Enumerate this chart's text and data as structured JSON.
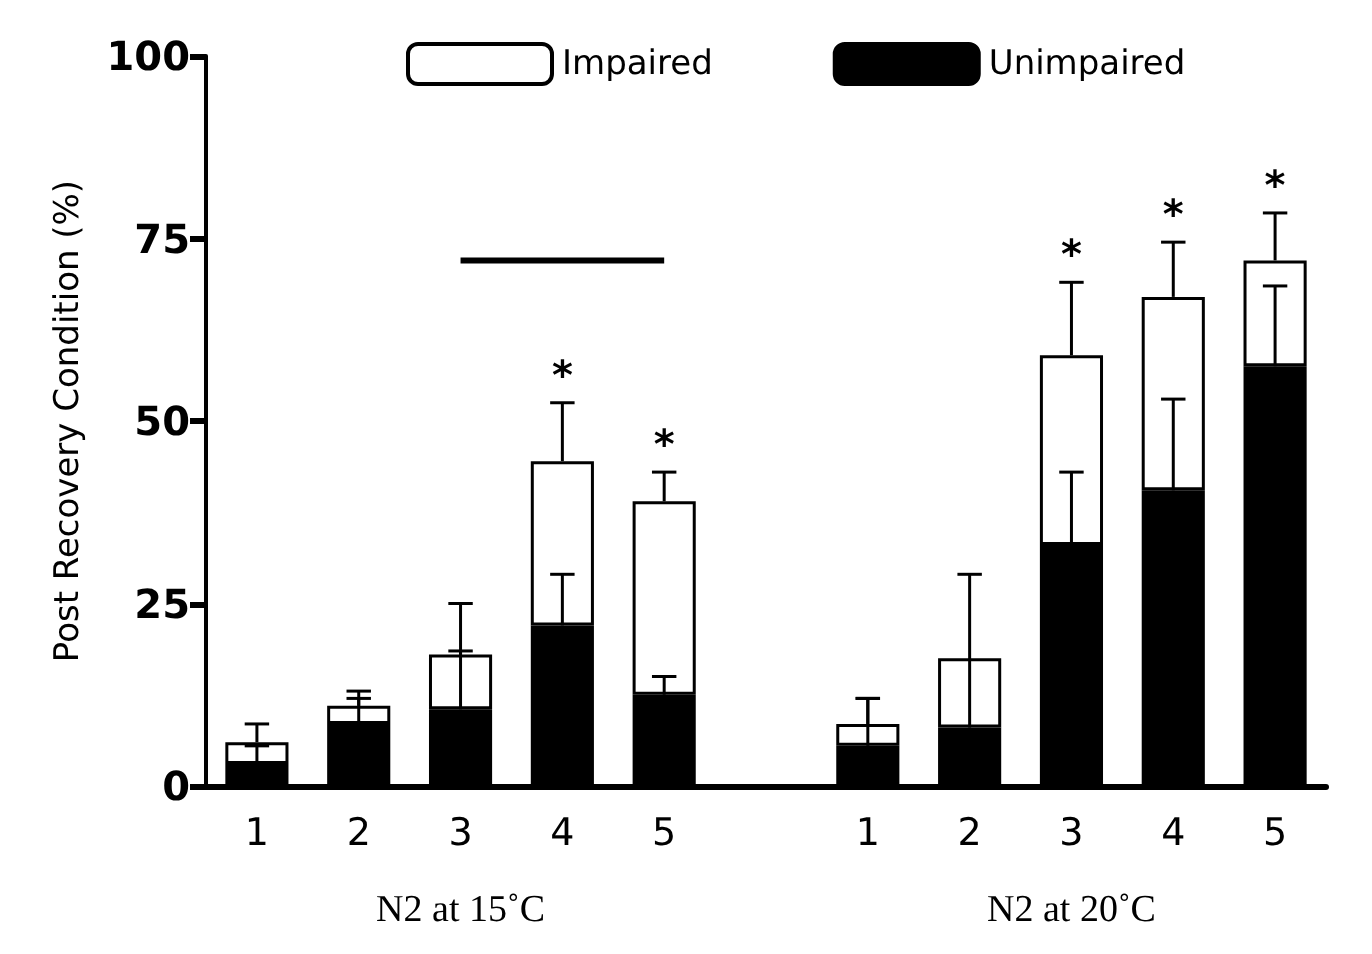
{
  "chart_data": {
    "type": "bar",
    "stacked": true,
    "ylabel": "Post Recovery Condition (%)",
    "categories": [
      "1",
      "2",
      "3",
      "4",
      "5",
      null,
      "1",
      "2",
      "3",
      "4",
      "5"
    ],
    "series": [
      {
        "name": "Unimpaired",
        "color": "#000000",
        "values": [
          3,
          8.5,
          10.5,
          22,
          12.5,
          null,
          5.5,
          8,
          33,
          40.5,
          57.5
        ],
        "errors": [
          [
            3,
            5.5
          ],
          [
            8.5,
            12
          ],
          [
            10.5,
            18.5
          ],
          [
            22,
            29
          ],
          [
            12.5,
            15
          ],
          null,
          [
            5.5,
            12
          ],
          [
            8,
            29
          ],
          [
            33,
            43
          ],
          [
            40.5,
            53
          ],
          [
            57.5,
            68.5
          ]
        ]
      },
      {
        "name": "Impaired",
        "color": "#ffffff",
        "values": [
          3,
          2.5,
          7.5,
          22.5,
          26.5,
          null,
          3,
          9.5,
          26,
          26.5,
          14.5
        ],
        "errors": [
          [
            6,
            8.5
          ],
          [
            11,
            13
          ],
          [
            18,
            25
          ],
          [
            44.5,
            52.5
          ],
          [
            39,
            43
          ],
          null,
          [
            8.5,
            12
          ],
          null,
          [
            59,
            69
          ],
          [
            67,
            74.5
          ],
          [
            72,
            78.5
          ]
        ],
        "value_labels": [
          null,
          null,
          null,
          "*",
          "*",
          null,
          null,
          null,
          "*",
          "*",
          "*"
        ]
      },
      {
        "type": "line",
        "color": "#000000",
        "values": [
          null,
          null,
          72,
          72,
          72,
          null,
          null,
          null,
          null,
          null,
          null
        ]
      }
    ],
    "ylim": [
      0,
      100
    ],
    "yticks": [
      0,
      25,
      50,
      75,
      100
    ],
    "grid": false,
    "legend": "top",
    "marker": "none",
    "annotations": [
      "N2 at 15˚C",
      "N2 at 20˚C"
    ]
  }
}
